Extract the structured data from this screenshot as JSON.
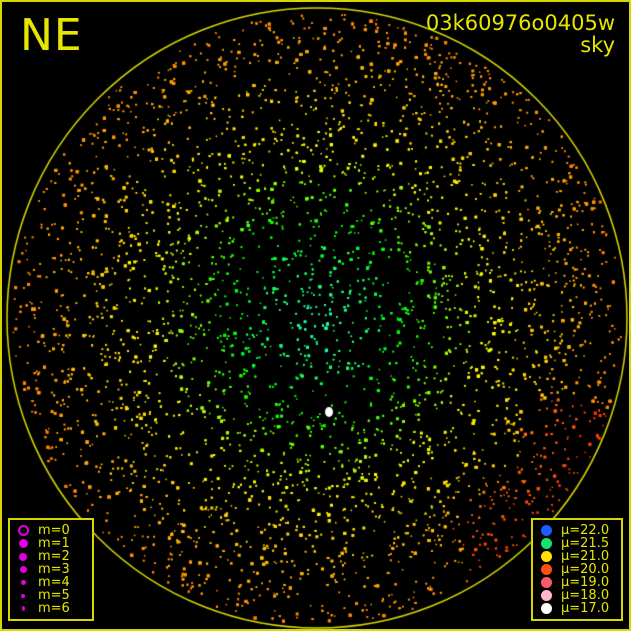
{
  "header": {
    "direction": "NE",
    "frame_id": "03k60976o0405w",
    "mode": "sky"
  },
  "colors": {
    "frame": "#d8d800",
    "text": "#e6e600"
  },
  "magnitude_legend": {
    "items": [
      {
        "label": "m=0",
        "color": "#e000e0",
        "hollow": true
      },
      {
        "label": "m=1",
        "color": "#e000e0"
      },
      {
        "label": "m=2",
        "color": "#e000e0"
      },
      {
        "label": "m=3",
        "color": "#e000e0"
      },
      {
        "label": "m=4",
        "color": "#e000e0"
      },
      {
        "label": "m=5",
        "color": "#e000e0"
      },
      {
        "label": "m=6",
        "color": "#e000e0"
      }
    ]
  },
  "brightness_legend": {
    "items": [
      {
        "label": "μ=22.0",
        "color": "#1a5cff"
      },
      {
        "label": "μ=21.5",
        "color": "#14e070"
      },
      {
        "label": "μ=21.0",
        "color": "#ffe000"
      },
      {
        "label": "μ=20.0",
        "color": "#ff5010"
      },
      {
        "label": "μ=19.0",
        "color": "#ff5a6a"
      },
      {
        "label": "μ=18.0",
        "color": "#ffb8c8"
      },
      {
        "label": "μ=17.0",
        "color": "#ffffff"
      }
    ]
  }
}
